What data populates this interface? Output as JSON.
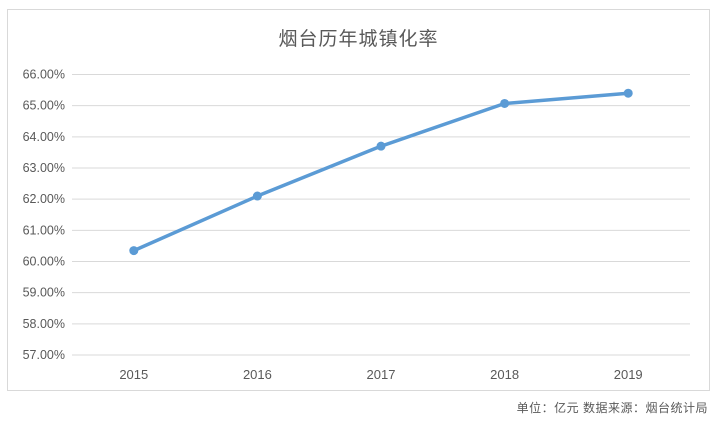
{
  "chart_data": {
    "type": "line",
    "title": "烟台历年城镇化率",
    "categories": [
      "2015",
      "2016",
      "2017",
      "2018",
      "2019"
    ],
    "values": [
      60.35,
      62.1,
      63.7,
      65.07,
      65.4
    ],
    "xlabel": "",
    "ylabel": "",
    "ylim": [
      57,
      66
    ],
    "ytick_step": 1,
    "ytick_format": "percent-2dp",
    "ytick_labels": [
      "57.00%",
      "58.00%",
      "59.00%",
      "60.00%",
      "61.00%",
      "62.00%",
      "63.00%",
      "64.00%",
      "65.00%",
      "66.00%"
    ],
    "grid": true,
    "legend": false,
    "line_color": "#5b9bd5",
    "marker_color": "#5b9bd5",
    "gridline_color": "#d9d9d9",
    "frame_border_color": "#d9d9d9",
    "tick_label_color": "#595959",
    "title_color": "#595959"
  },
  "footer": {
    "text": "单位：亿元  数据来源：烟台统计局"
  }
}
